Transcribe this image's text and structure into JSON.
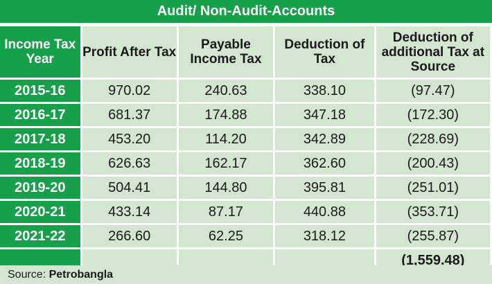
{
  "title": "Audit/ Non-Audit-Accounts",
  "headers": [
    "Income Tax Year",
    "Profit After Tax",
    "Payable Income Tax",
    "Deduction of Tax",
    "Deduction of additional Tax at Source"
  ],
  "rows": [
    {
      "year": "2015-16",
      "profit": "970.02",
      "payable": "240.63",
      "deduction": "338.10",
      "additional": "(97.47)"
    },
    {
      "year": "2016-17",
      "profit": "681.37",
      "payable": "174.88",
      "deduction": "347.18",
      "additional": "(172.30)"
    },
    {
      "year": "2017-18",
      "profit": "453.20",
      "payable": "114.20",
      "deduction": "342.89",
      "additional": "(228.69)"
    },
    {
      "year": "2018-19",
      "profit": "626.63",
      "payable": "162.17",
      "deduction": "362.60",
      "additional": "(200.43)"
    },
    {
      "year": "2019-20",
      "profit": "504.41",
      "payable": "144.80",
      "deduction": "395.81",
      "additional": "(251.01)"
    },
    {
      "year": "2020-21",
      "profit": "433.14",
      "payable": "87.17",
      "deduction": "440.88",
      "additional": "(353.71)"
    },
    {
      "year": "2021-22",
      "profit": "266.60",
      "payable": "62.25",
      "deduction": "318.12",
      "additional": "(255.87)"
    }
  ],
  "total": "(1,559.48)",
  "source_label": "Source:",
  "source_name": "Petrobangla",
  "colors": {
    "green": "#16a04a",
    "light_green": "#d3e6cf",
    "text": "#1a1a1a"
  }
}
